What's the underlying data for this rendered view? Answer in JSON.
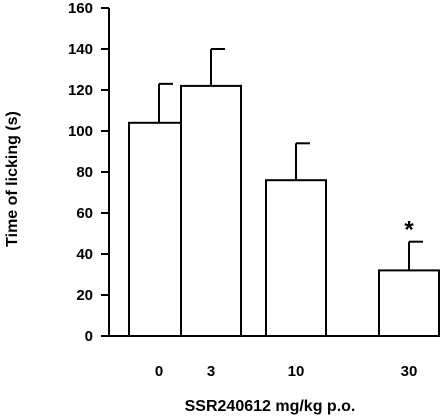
{
  "chart_data": {
    "type": "bar",
    "categories": [
      "0",
      "3",
      "10",
      "30"
    ],
    "values": [
      104,
      122,
      76,
      32
    ],
    "errors": [
      19,
      18,
      18,
      14
    ],
    "annotations": [
      "",
      "",
      "",
      "*"
    ],
    "title": "",
    "xlabel": "SSR240612 mg/kg p.o.",
    "ylabel": "Time of licking (s)",
    "ylim": [
      0,
      160
    ],
    "yticks": [
      0,
      20,
      40,
      60,
      80,
      100,
      120,
      140,
      160
    ],
    "grid": false,
    "legend": "none",
    "colors": {
      "bar_fill": "#ffffff",
      "bar_stroke": "#000000",
      "axis": "#000000"
    }
  }
}
